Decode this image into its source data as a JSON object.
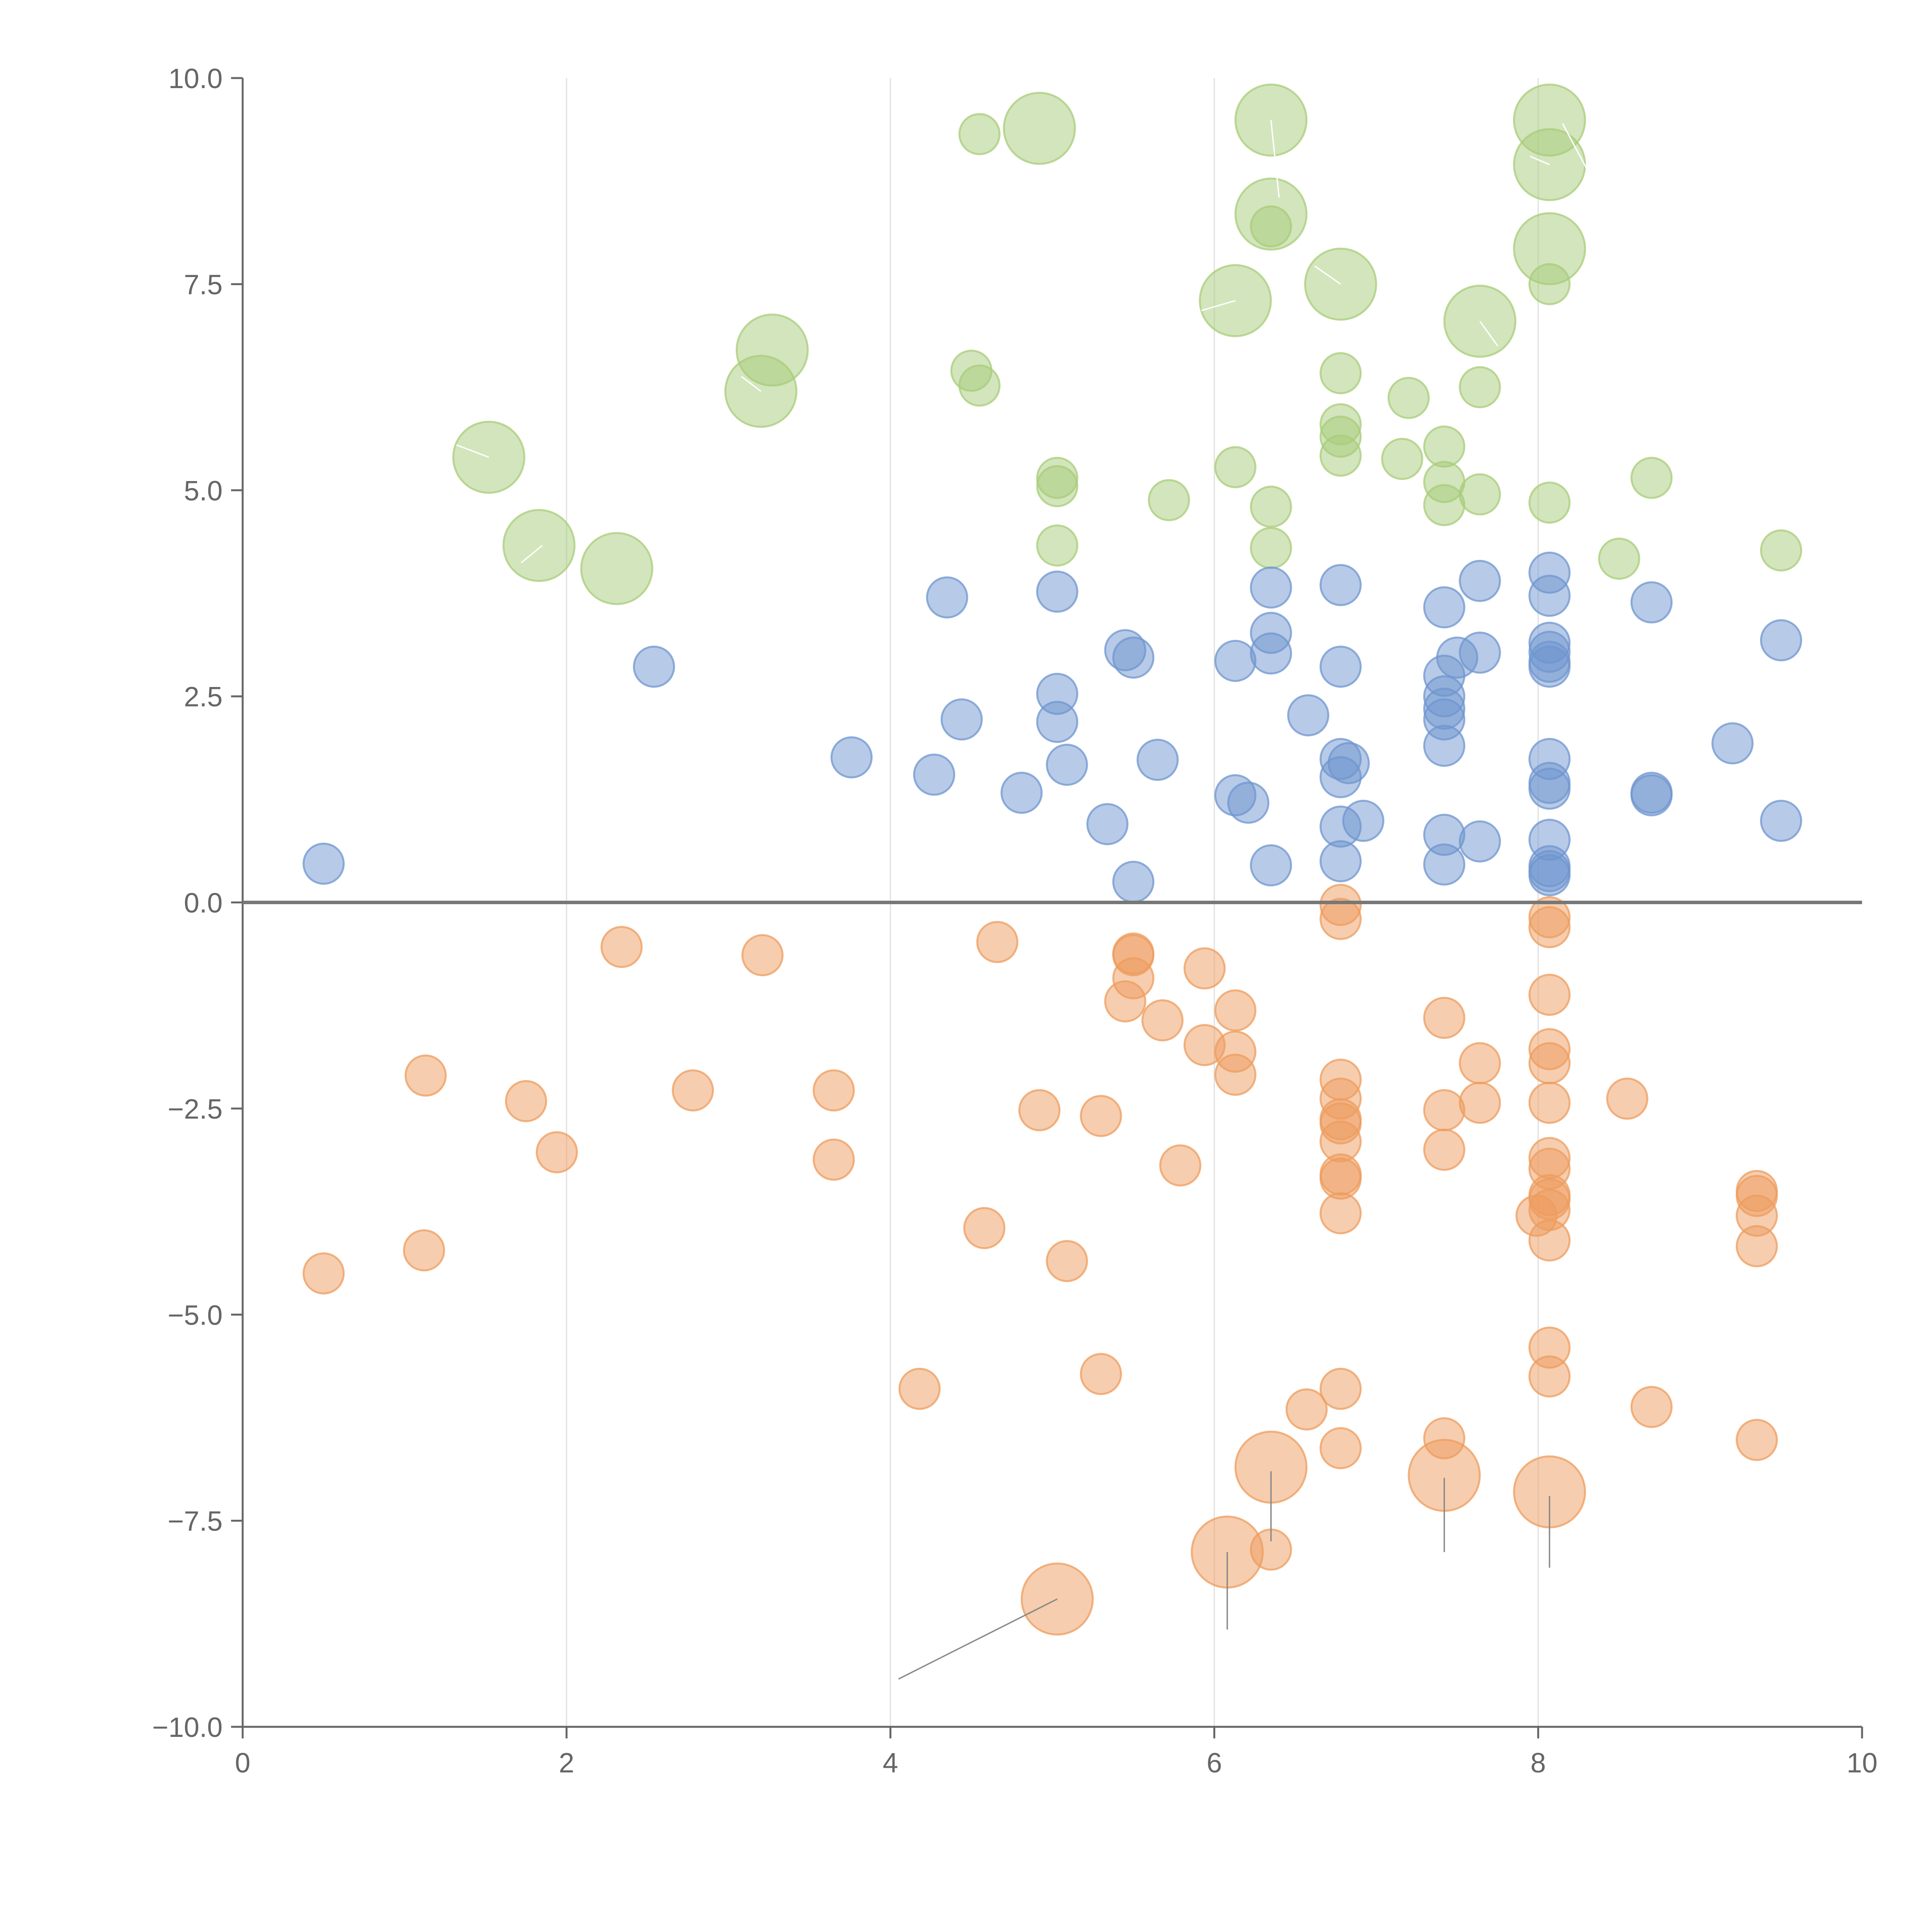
{
  "chart_data": {
    "type": "scatter",
    "title": "",
    "xlabel": "",
    "ylabel": "",
    "xlim": [
      0,
      10
    ],
    "ylim": [
      -10,
      10
    ],
    "x_ticks": [
      "0",
      "2",
      "4",
      "6",
      "8",
      "10"
    ],
    "y_ticks": [
      "10.0",
      "7.5",
      "5.0",
      "2.5",
      "0.0",
      "−2.5",
      "−5.0",
      "−7.5",
      "−10.0"
    ],
    "vertical_gridlines_at": [
      2,
      4,
      6,
      8
    ],
    "reference_line_y": 0,
    "colors": {
      "green": "#a8cc7a",
      "blue": "#6f95cf",
      "orange": "#ee9c5e"
    },
    "series": [
      {
        "name": "green",
        "points": [
          {
            "x": 4.55,
            "y": 9.32,
            "s": 1
          },
          {
            "x": 4.92,
            "y": 9.39,
            "s": 2
          },
          {
            "x": 6.35,
            "y": 9.49,
            "s": 2
          },
          {
            "x": 8.07,
            "y": 9.49,
            "s": 2
          },
          {
            "x": 8.07,
            "y": 8.95,
            "s": 2
          },
          {
            "x": 6.35,
            "y": 8.35,
            "s": 2
          },
          {
            "x": 6.35,
            "y": 8.2,
            "s": 1
          },
          {
            "x": 8.07,
            "y": 7.93,
            "s": 2
          },
          {
            "x": 6.78,
            "y": 7.5,
            "s": 2
          },
          {
            "x": 8.07,
            "y": 7.5,
            "s": 1
          },
          {
            "x": 6.13,
            "y": 7.3,
            "s": 2
          },
          {
            "x": 7.64,
            "y": 7.05,
            "s": 2
          },
          {
            "x": 3.27,
            "y": 6.7,
            "s": 2
          },
          {
            "x": 4.5,
            "y": 6.45,
            "s": 1
          },
          {
            "x": 6.78,
            "y": 6.42,
            "s": 1
          },
          {
            "x": 4.55,
            "y": 6.27,
            "s": 1
          },
          {
            "x": 3.2,
            "y": 6.2,
            "s": 2
          },
          {
            "x": 7.64,
            "y": 6.25,
            "s": 1
          },
          {
            "x": 7.2,
            "y": 6.12,
            "s": 1
          },
          {
            "x": 6.78,
            "y": 5.8,
            "s": 1
          },
          {
            "x": 6.78,
            "y": 5.65,
            "s": 1
          },
          {
            "x": 7.42,
            "y": 5.53,
            "s": 1
          },
          {
            "x": 1.52,
            "y": 5.4,
            "s": 2
          },
          {
            "x": 6.78,
            "y": 5.42,
            "s": 1
          },
          {
            "x": 7.16,
            "y": 5.38,
            "s": 1
          },
          {
            "x": 6.13,
            "y": 5.28,
            "s": 1
          },
          {
            "x": 5.03,
            "y": 5.15,
            "s": 1
          },
          {
            "x": 8.7,
            "y": 5.15,
            "s": 1
          },
          {
            "x": 5.03,
            "y": 5.05,
            "s": 1
          },
          {
            "x": 7.42,
            "y": 5.1,
            "s": 1
          },
          {
            "x": 7.64,
            "y": 4.95,
            "s": 1
          },
          {
            "x": 5.72,
            "y": 4.88,
            "s": 1
          },
          {
            "x": 8.07,
            "y": 4.85,
            "s": 1
          },
          {
            "x": 6.35,
            "y": 4.8,
            "s": 1
          },
          {
            "x": 7.42,
            "y": 4.82,
            "s": 1
          },
          {
            "x": 1.83,
            "y": 4.33,
            "s": 2
          },
          {
            "x": 5.03,
            "y": 4.33,
            "s": 1
          },
          {
            "x": 6.35,
            "y": 4.3,
            "s": 1
          },
          {
            "x": 9.5,
            "y": 4.27,
            "s": 1
          },
          {
            "x": 8.5,
            "y": 4.17,
            "s": 1
          },
          {
            "x": 2.31,
            "y": 4.05,
            "s": 2
          }
        ]
      },
      {
        "name": "blue",
        "points": [
          {
            "x": 8.07,
            "y": 4.0,
            "s": 1
          },
          {
            "x": 6.35,
            "y": 3.82,
            "s": 1
          },
          {
            "x": 6.78,
            "y": 3.85,
            "s": 1
          },
          {
            "x": 7.64,
            "y": 3.9,
            "s": 1
          },
          {
            "x": 5.03,
            "y": 3.77,
            "s": 1
          },
          {
            "x": 4.35,
            "y": 3.7,
            "s": 1
          },
          {
            "x": 8.07,
            "y": 3.72,
            "s": 1
          },
          {
            "x": 8.7,
            "y": 3.64,
            "s": 1
          },
          {
            "x": 7.42,
            "y": 3.58,
            "s": 1
          },
          {
            "x": 6.35,
            "y": 3.27,
            "s": 1
          },
          {
            "x": 9.5,
            "y": 3.18,
            "s": 1
          },
          {
            "x": 8.07,
            "y": 3.15,
            "s": 1
          },
          {
            "x": 5.45,
            "y": 3.06,
            "s": 1
          },
          {
            "x": 7.64,
            "y": 3.03,
            "s": 1
          },
          {
            "x": 6.35,
            "y": 3.02,
            "s": 1
          },
          {
            "x": 8.07,
            "y": 3.04,
            "s": 1
          },
          {
            "x": 5.5,
            "y": 2.97,
            "s": 1
          },
          {
            "x": 6.13,
            "y": 2.93,
            "s": 1
          },
          {
            "x": 7.5,
            "y": 2.97,
            "s": 1
          },
          {
            "x": 2.54,
            "y": 2.86,
            "s": 1
          },
          {
            "x": 8.07,
            "y": 2.92,
            "s": 1
          },
          {
            "x": 6.78,
            "y": 2.86,
            "s": 1
          },
          {
            "x": 8.07,
            "y": 2.86,
            "s": 1
          },
          {
            "x": 7.42,
            "y": 2.75,
            "s": 1
          },
          {
            "x": 5.03,
            "y": 2.53,
            "s": 1
          },
          {
            "x": 7.42,
            "y": 2.5,
            "s": 1
          },
          {
            "x": 7.42,
            "y": 2.35,
            "s": 1
          },
          {
            "x": 6.58,
            "y": 2.27,
            "s": 1
          },
          {
            "x": 4.44,
            "y": 2.22,
            "s": 1
          },
          {
            "x": 7.42,
            "y": 2.22,
            "s": 1
          },
          {
            "x": 5.03,
            "y": 2.19,
            "s": 1
          },
          {
            "x": 9.2,
            "y": 1.93,
            "s": 1
          },
          {
            "x": 7.42,
            "y": 1.9,
            "s": 1
          },
          {
            "x": 3.76,
            "y": 1.76,
            "s": 1
          },
          {
            "x": 6.78,
            "y": 1.74,
            "s": 1
          },
          {
            "x": 8.07,
            "y": 1.74,
            "s": 1
          },
          {
            "x": 5.65,
            "y": 1.73,
            "s": 1
          },
          {
            "x": 6.83,
            "y": 1.69,
            "s": 1
          },
          {
            "x": 5.09,
            "y": 1.67,
            "s": 1
          },
          {
            "x": 4.27,
            "y": 1.55,
            "s": 1
          },
          {
            "x": 6.78,
            "y": 1.52,
            "s": 1
          },
          {
            "x": 8.07,
            "y": 1.45,
            "s": 1
          },
          {
            "x": 8.07,
            "y": 1.38,
            "s": 1
          },
          {
            "x": 4.81,
            "y": 1.33,
            "s": 1
          },
          {
            "x": 8.7,
            "y": 1.33,
            "s": 1
          },
          {
            "x": 8.7,
            "y": 1.3,
            "s": 1
          },
          {
            "x": 6.13,
            "y": 1.3,
            "s": 1
          },
          {
            "x": 6.21,
            "y": 1.21,
            "s": 1
          },
          {
            "x": 6.92,
            "y": 0.99,
            "s": 1
          },
          {
            "x": 9.5,
            "y": 0.99,
            "s": 1
          },
          {
            "x": 5.34,
            "y": 0.95,
            "s": 1
          },
          {
            "x": 6.78,
            "y": 0.92,
            "s": 1
          },
          {
            "x": 7.42,
            "y": 0.82,
            "s": 1
          },
          {
            "x": 8.07,
            "y": 0.76,
            "s": 1
          },
          {
            "x": 7.64,
            "y": 0.74,
            "s": 1
          },
          {
            "x": 0.5,
            "y": 0.47,
            "s": 1
          },
          {
            "x": 6.78,
            "y": 0.5,
            "s": 1
          },
          {
            "x": 6.35,
            "y": 0.45,
            "s": 1
          },
          {
            "x": 7.42,
            "y": 0.46,
            "s": 1
          },
          {
            "x": 8.07,
            "y": 0.44,
            "s": 1
          },
          {
            "x": 8.07,
            "y": 0.38,
            "s": 1
          },
          {
            "x": 8.07,
            "y": 0.33,
            "s": 1
          },
          {
            "x": 5.5,
            "y": 0.25,
            "s": 1
          }
        ]
      },
      {
        "name": "orange",
        "points": [
          {
            "x": 6.78,
            "y": -0.03,
            "s": 1
          },
          {
            "x": 6.78,
            "y": -0.2,
            "s": 1
          },
          {
            "x": 8.07,
            "y": -0.18,
            "s": 1
          },
          {
            "x": 8.07,
            "y": -0.3,
            "s": 1
          },
          {
            "x": 4.66,
            "y": -0.48,
            "s": 1
          },
          {
            "x": 2.34,
            "y": -0.54,
            "s": 1
          },
          {
            "x": 3.21,
            "y": -0.64,
            "s": 1
          },
          {
            "x": 5.5,
            "y": -0.62,
            "s": 1
          },
          {
            "x": 5.5,
            "y": -0.64,
            "s": 1
          },
          {
            "x": 5.94,
            "y": -0.8,
            "s": 1
          },
          {
            "x": 5.5,
            "y": -0.92,
            "s": 1
          },
          {
            "x": 8.07,
            "y": -1.12,
            "s": 1
          },
          {
            "x": 5.45,
            "y": -1.2,
            "s": 1
          },
          {
            "x": 6.13,
            "y": -1.31,
            "s": 1
          },
          {
            "x": 7.42,
            "y": -1.4,
            "s": 1
          },
          {
            "x": 5.68,
            "y": -1.43,
            "s": 1
          },
          {
            "x": 5.94,
            "y": -1.73,
            "s": 1
          },
          {
            "x": 8.07,
            "y": -1.78,
            "s": 1
          },
          {
            "x": 6.13,
            "y": -1.81,
            "s": 1
          },
          {
            "x": 7.64,
            "y": -1.95,
            "s": 1
          },
          {
            "x": 8.07,
            "y": -1.95,
            "s": 1
          },
          {
            "x": 1.13,
            "y": -2.1,
            "s": 1
          },
          {
            "x": 6.13,
            "y": -2.09,
            "s": 1
          },
          {
            "x": 6.78,
            "y": -2.15,
            "s": 1
          },
          {
            "x": 3.65,
            "y": -2.28,
            "s": 1
          },
          {
            "x": 2.78,
            "y": -2.28,
            "s": 1
          },
          {
            "x": 6.78,
            "y": -2.38,
            "s": 1
          },
          {
            "x": 1.75,
            "y": -2.41,
            "s": 1
          },
          {
            "x": 8.55,
            "y": -2.38,
            "s": 1
          },
          {
            "x": 7.64,
            "y": -2.43,
            "s": 1
          },
          {
            "x": 8.07,
            "y": -2.43,
            "s": 1
          },
          {
            "x": 4.92,
            "y": -2.52,
            "s": 1
          },
          {
            "x": 7.42,
            "y": -2.52,
            "s": 1
          },
          {
            "x": 5.3,
            "y": -2.59,
            "s": 1
          },
          {
            "x": 6.78,
            "y": -2.63,
            "s": 1
          },
          {
            "x": 6.78,
            "y": -2.68,
            "s": 1
          },
          {
            "x": 6.78,
            "y": -2.9,
            "s": 1
          },
          {
            "x": 7.42,
            "y": -3.0,
            "s": 1
          },
          {
            "x": 1.94,
            "y": -3.03,
            "s": 1
          },
          {
            "x": 8.07,
            "y": -3.1,
            "s": 1
          },
          {
            "x": 3.65,
            "y": -3.12,
            "s": 1
          },
          {
            "x": 5.79,
            "y": -3.19,
            "s": 1
          },
          {
            "x": 8.07,
            "y": -3.23,
            "s": 1
          },
          {
            "x": 6.78,
            "y": -3.3,
            "s": 1
          },
          {
            "x": 6.78,
            "y": -3.35,
            "s": 1
          },
          {
            "x": 9.35,
            "y": -3.5,
            "s": 1
          },
          {
            "x": 8.07,
            "y": -3.55,
            "s": 1
          },
          {
            "x": 9.35,
            "y": -3.56,
            "s": 1
          },
          {
            "x": 8.07,
            "y": -3.6,
            "s": 1
          },
          {
            "x": 8.07,
            "y": -3.73,
            "s": 1
          },
          {
            "x": 6.78,
            "y": -3.77,
            "s": 1
          },
          {
            "x": 7.99,
            "y": -3.8,
            "s": 1
          },
          {
            "x": 9.35,
            "y": -3.8,
            "s": 1
          },
          {
            "x": 4.58,
            "y": -3.95,
            "s": 1
          },
          {
            "x": 8.07,
            "y": -4.1,
            "s": 1
          },
          {
            "x": 9.35,
            "y": -4.17,
            "s": 1
          },
          {
            "x": 1.12,
            "y": -4.22,
            "s": 1
          },
          {
            "x": 5.09,
            "y": -4.35,
            "s": 1
          },
          {
            "x": 0.5,
            "y": -4.5,
            "s": 1
          },
          {
            "x": 8.07,
            "y": -5.4,
            "s": 1
          },
          {
            "x": 5.3,
            "y": -5.72,
            "s": 1
          },
          {
            "x": 8.07,
            "y": -5.75,
            "s": 1
          },
          {
            "x": 4.18,
            "y": -5.9,
            "s": 1
          },
          {
            "x": 6.78,
            "y": -5.9,
            "s": 1
          },
          {
            "x": 6.57,
            "y": -6.15,
            "s": 1
          },
          {
            "x": 8.7,
            "y": -6.12,
            "s": 1
          },
          {
            "x": 7.42,
            "y": -6.5,
            "s": 1
          },
          {
            "x": 9.35,
            "y": -6.52,
            "s": 1
          },
          {
            "x": 6.78,
            "y": -6.62,
            "s": 1
          },
          {
            "x": 6.35,
            "y": -6.85,
            "s": 2
          },
          {
            "x": 7.42,
            "y": -6.95,
            "s": 2
          },
          {
            "x": 8.07,
            "y": -7.15,
            "s": 2
          },
          {
            "x": 6.35,
            "y": -7.85,
            "s": 1
          },
          {
            "x": 6.08,
            "y": -7.88,
            "s": 2
          },
          {
            "x": 5.03,
            "y": -8.45,
            "s": 2
          }
        ]
      }
    ]
  }
}
